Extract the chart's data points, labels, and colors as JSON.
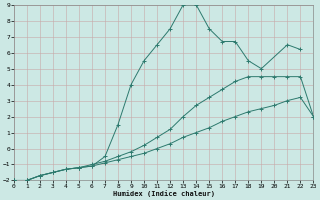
{
  "xlabel": "Humidex (Indice chaleur)",
  "bg_color": "#cce8e4",
  "grid_color": "#aacfca",
  "line_color": "#2d7a6e",
  "xlim": [
    0,
    23
  ],
  "ylim": [
    -2,
    9
  ],
  "xticks": [
    0,
    1,
    2,
    3,
    4,
    5,
    6,
    7,
    8,
    9,
    10,
    11,
    12,
    13,
    14,
    15,
    16,
    17,
    18,
    19,
    20,
    21,
    22,
    23
  ],
  "yticks": [
    -2,
    -1,
    0,
    1,
    2,
    3,
    4,
    5,
    6,
    7,
    8,
    9
  ],
  "series": [
    {
      "segments": [
        {
          "x": [
            0,
            1,
            2,
            3,
            4,
            5,
            6,
            7,
            8,
            9,
            10,
            11,
            12,
            13,
            14,
            15,
            16,
            17,
            18,
            19,
            21,
            22
          ],
          "y": [
            -2,
            -2,
            -1.7,
            -1.5,
            -1.3,
            -1.2,
            -1.1,
            -0.5,
            1.5,
            4.0,
            5.5,
            6.5,
            7.5,
            9.0,
            9.0,
            7.5,
            6.7,
            6.7,
            5.5,
            5.0,
            6.5,
            6.2
          ]
        }
      ]
    },
    {
      "segments": [
        {
          "x": [
            0,
            1,
            2,
            3,
            4,
            5,
            6,
            7,
            8,
            9,
            10,
            11,
            12,
            13,
            14,
            15,
            16,
            17,
            18,
            19,
            20,
            21,
            22,
            23
          ],
          "y": [
            -2,
            -2,
            -1.7,
            -1.5,
            -1.3,
            -1.2,
            -1.0,
            -0.8,
            -0.5,
            -0.2,
            0.2,
            0.7,
            1.2,
            2.0,
            2.7,
            3.2,
            3.7,
            4.2,
            4.5,
            4.5,
            4.5,
            4.5,
            4.5,
            2.0
          ]
        }
      ]
    },
    {
      "segments": [
        {
          "x": [
            0,
            1,
            2,
            3,
            4,
            5,
            6,
            7,
            8,
            9,
            10,
            11,
            12,
            13,
            14,
            15,
            16,
            17,
            18,
            19,
            20,
            21,
            22,
            23
          ],
          "y": [
            -2,
            -2,
            -1.7,
            -1.5,
            -1.3,
            -1.2,
            -1.1,
            -0.9,
            -0.7,
            -0.5,
            -0.3,
            0.0,
            0.3,
            0.7,
            1.0,
            1.3,
            1.7,
            2.0,
            2.3,
            2.5,
            2.7,
            3.0,
            3.2,
            2.0
          ]
        }
      ]
    }
  ]
}
